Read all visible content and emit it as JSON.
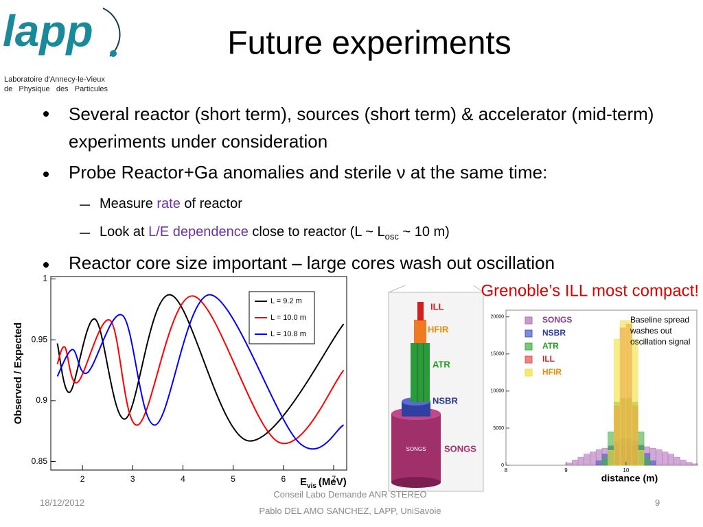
{
  "logo": {
    "mark": "lapp",
    "line1": "Laboratoire d'Annecy-le-Vieux",
    "line2": "de   Physique   des   Particules"
  },
  "title": "Future experiments",
  "bullets": [
    {
      "text": "Several reactor (short term), sources (short term) & accelerator (mid-term) experiments under consideration"
    },
    {
      "text": "Probe Reactor+Ga anomalies and sterile ν at the same time:",
      "sub": [
        [
          "Measure ",
          "rate",
          " of reactor"
        ],
        [
          "Look at ",
          "L/E dependence",
          " close to reactor (L ~ L",
          "osc",
          " ~ 10 m)"
        ]
      ]
    },
    {
      "text": "Reactor core size important – large cores wash out oscillation"
    }
  ],
  "callout": "Grenoble’s ILL most compact!",
  "core_labels": [
    "ILL",
    "HFIR",
    "ATR",
    "NSBR",
    "SONGS"
  ],
  "core_inner": "SONGS",
  "charts": [
    {
      "type": "line",
      "ylabel": "Observed / Expected",
      "xlabel": [
        "E",
        "vis",
        "(MeV)"
      ],
      "xlim": [
        1.37,
        7.26
      ],
      "ylim": [
        0.843,
        1.002
      ],
      "xticks": [
        2,
        3,
        4,
        5,
        6,
        7
      ],
      "yticks": [
        0.85,
        0.9,
        0.95,
        1
      ],
      "series": [
        {
          "name": "L = 9.2 m",
          "color": "#000000",
          "x": [
            1.5,
            1.75,
            2.25,
            2.85,
            3.75,
            5.3,
            7.2
          ],
          "values": [
            0.947,
            0.907,
            0.967,
            0.885,
            0.987,
            0.867,
            0.963
          ]
        },
        {
          "name": "L = 10.0 m",
          "color": "#ff0000",
          "x": [
            1.5,
            1.65,
            1.9,
            2.55,
            3.1,
            4.2,
            5.9,
            7.2
          ],
          "values": [
            0.93,
            0.944,
            0.915,
            0.966,
            0.88,
            0.986,
            0.866,
            0.925
          ]
        },
        {
          "name": "L = 10.8 m",
          "color": "#0000ff",
          "x": [
            1.5,
            1.8,
            2.1,
            2.8,
            3.45,
            4.55,
            6.3,
            7.2
          ],
          "values": [
            0.92,
            0.942,
            0.923,
            0.97,
            0.88,
            0.987,
            0.866,
            0.88
          ]
        }
      ]
    },
    {
      "type": "histogram",
      "xlabel": "distance (m)",
      "annotation": [
        "Baseline spread",
        "washes out",
        "oscillation signal"
      ],
      "xlim": [
        8,
        11.18
      ],
      "ylim": [
        0,
        20900
      ],
      "xticks": [
        8,
        9,
        10
      ],
      "yticks": [
        0,
        5000,
        10000,
        15000,
        20000
      ],
      "bins": [
        9,
        9.1,
        9.2,
        9.3,
        9.4,
        9.5,
        9.6,
        9.7,
        9.8,
        9.9,
        10,
        10.1,
        10.2,
        10.3,
        10.4,
        10.5,
        10.6,
        10.7,
        10.8,
        10.9,
        11,
        11.1,
        11.2
      ],
      "series": [
        {
          "name": "SONGS",
          "color": "#b070b8",
          "text_color": "#8a3a8a",
          "values": [
            300,
            700,
            1100,
            1500,
            1800,
            2100,
            2300,
            2500,
            2600,
            2700,
            2700,
            2600,
            2600,
            2500,
            2300,
            2100,
            1800,
            1500,
            1100,
            700,
            400,
            200
          ]
        },
        {
          "name": "NSBR",
          "color": "#4a5ac8",
          "text_color": "#2a3a9a",
          "values": [
            0,
            0,
            0,
            0,
            0,
            600,
            1500,
            2600,
            3200,
            3600,
            3600,
            3300,
            2700,
            1600,
            600,
            0,
            0,
            0,
            0,
            0,
            0,
            0
          ]
        },
        {
          "name": "ATR",
          "color": "#40b040",
          "text_color": "#1f9a1f",
          "values": [
            0,
            0,
            0,
            0,
            0,
            0,
            1000,
            4500,
            8500,
            9000,
            9000,
            8500,
            4500,
            1000,
            0,
            0,
            0,
            0,
            0,
            0,
            0,
            0
          ]
        },
        {
          "name": "ILL",
          "color": "#e85050",
          "text_color": "#d42020",
          "values": [
            0,
            0,
            0,
            0,
            0,
            0,
            0,
            0,
            8000,
            18500,
            19000,
            8000,
            0,
            0,
            0,
            0,
            0,
            0,
            0,
            0,
            0,
            0
          ]
        },
        {
          "name": "HFIR",
          "color": "#f0e040",
          "text_color": "#f08a00",
          "values": [
            0,
            0,
            0,
            0,
            0,
            0,
            0,
            2000,
            17000,
            19500,
            19500,
            17000,
            2000,
            0,
            0,
            0,
            0,
            0,
            0,
            0,
            0,
            0
          ]
        }
      ]
    }
  ],
  "footer": {
    "date": "18/12/2012",
    "line1": "Conseil Labo Demande ANR STEREO",
    "line2": "Pablo DEL AMO SANCHEZ, LAPP, UniSavoie",
    "page": "9"
  }
}
